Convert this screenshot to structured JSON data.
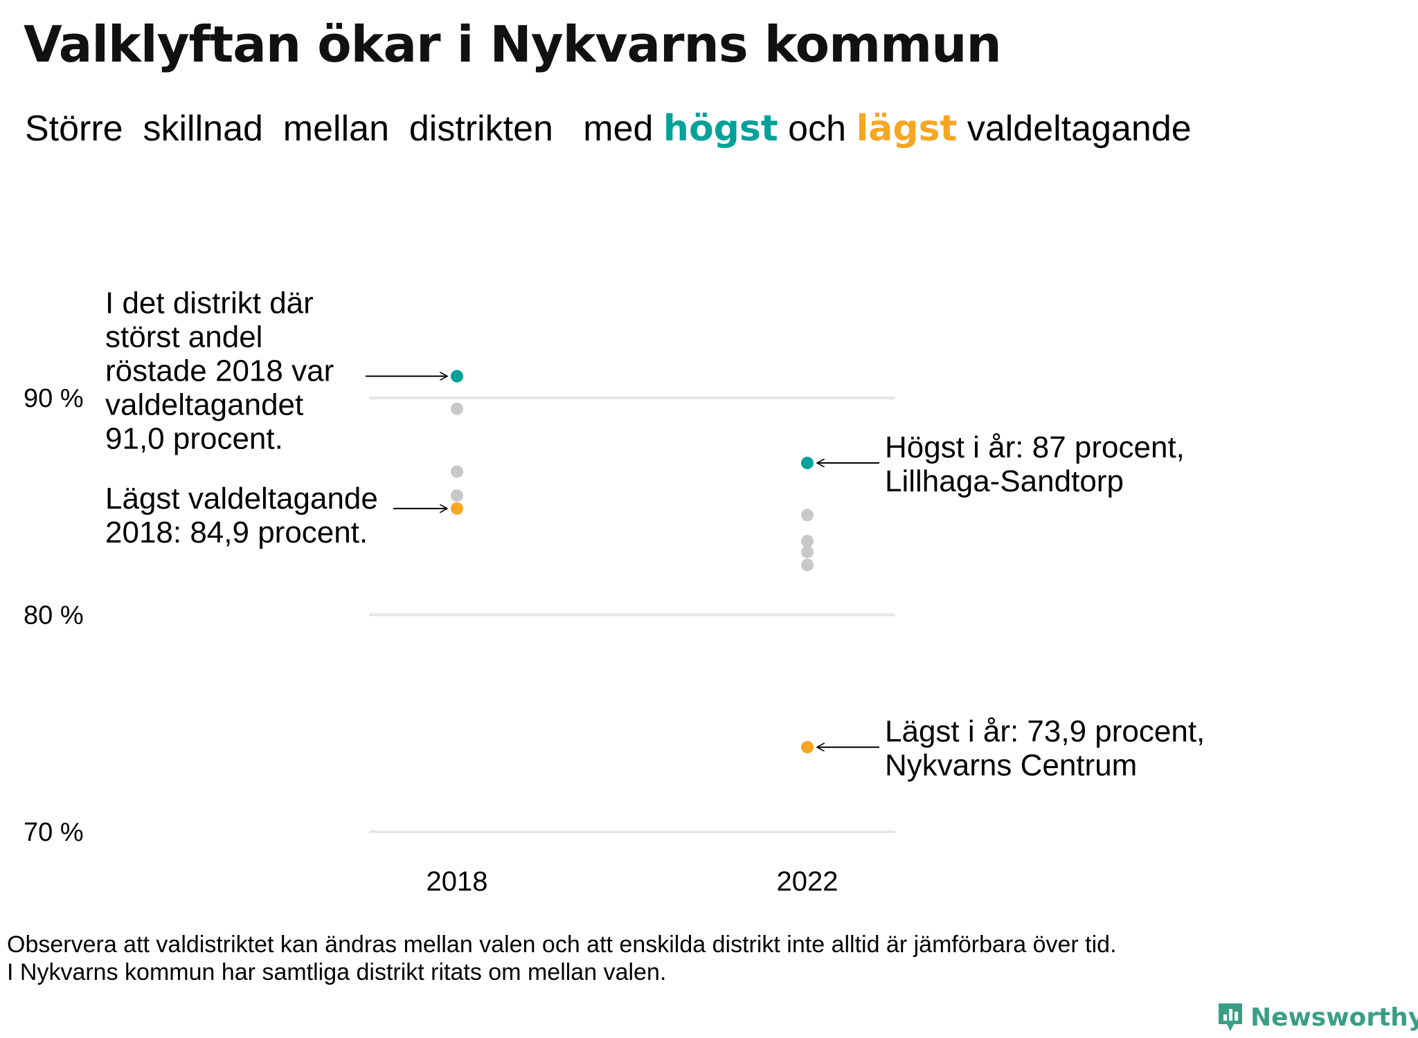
{
  "title": "Valklyftan ökar i Nykvarns kommun",
  "subtitle": {
    "part1": "Större  skillnad  mellan  distrikten   med ",
    "highest": "högst",
    "middle": " och ",
    "lowest": "lägst",
    "part2": " valdeltagande"
  },
  "colors": {
    "highest": "#00a199",
    "lowest": "#f5a623",
    "other": "#c8c8c8",
    "grid": "#e6e6e6",
    "brand": "#3a9e86"
  },
  "chart_data": {
    "type": "scatter",
    "categories": [
      "2018",
      "2022"
    ],
    "y_ticks": [
      {
        "value": 90,
        "label": "90 %"
      },
      {
        "value": 80,
        "label": "80 %"
      },
      {
        "value": 70,
        "label": "70 %"
      }
    ],
    "ylim": [
      70,
      90
    ],
    "grid": true,
    "points": [
      {
        "category": "2018",
        "value": 91.0,
        "role": "highest"
      },
      {
        "category": "2018",
        "value": 89.5,
        "role": "other"
      },
      {
        "category": "2018",
        "value": 86.6,
        "role": "other"
      },
      {
        "category": "2018",
        "value": 85.5,
        "role": "other"
      },
      {
        "category": "2018",
        "value": 84.9,
        "role": "lowest"
      },
      {
        "category": "2022",
        "value": 87.0,
        "role": "highest"
      },
      {
        "category": "2022",
        "value": 84.6,
        "role": "other"
      },
      {
        "category": "2022",
        "value": 83.4,
        "role": "other"
      },
      {
        "category": "2022",
        "value": 82.9,
        "role": "other"
      },
      {
        "category": "2022",
        "value": 82.3,
        "role": "other"
      },
      {
        "category": "2022",
        "value": 73.9,
        "role": "lowest"
      }
    ],
    "annotations": [
      {
        "category": "2018",
        "value": 91.0,
        "side": "left",
        "lines": [
          "I det distrikt där",
          "störst andel",
          "röstade 2018 var",
          "valdeltagandet",
          "91,0 procent."
        ]
      },
      {
        "category": "2018",
        "value": 84.9,
        "side": "left",
        "lines": [
          "Lägst valdeltagande",
          "2018: 84,9 procent."
        ]
      },
      {
        "category": "2022",
        "value": 87.0,
        "side": "right",
        "lines": [
          "Högst i år: 87 procent,",
          "Lillhaga-Sandtorp"
        ]
      },
      {
        "category": "2022",
        "value": 73.9,
        "side": "right",
        "lines": [
          "Lägst i år: 73,9 procent,",
          "Nykvarns Centrum"
        ]
      }
    ]
  },
  "note": {
    "line1": "Observera att valdistriktet kan ändras mellan valen och att enskilda distrikt inte alltid är jämförbara över tid.",
    "line2": "I Nykvarns kommun har samtliga distrikt ritats om mellan valen."
  },
  "brand": {
    "name": "Newsworthy",
    "icon": "bar-chart-speech-bubble-icon"
  }
}
